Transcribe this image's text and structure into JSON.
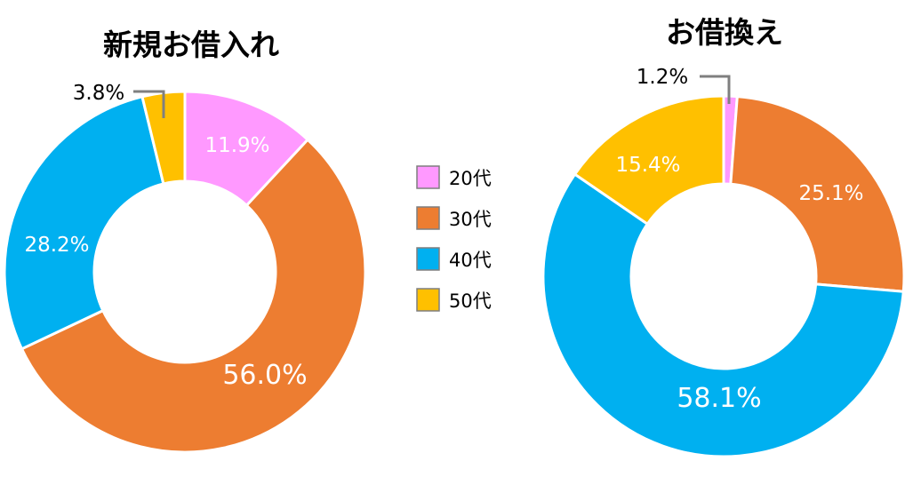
{
  "legend": {
    "placement": "center",
    "items": [
      {
        "label": "20代",
        "color": "#FF99FF"
      },
      {
        "label": "30代",
        "color": "#ED7D31"
      },
      {
        "label": "40代",
        "color": "#00B0F0"
      },
      {
        "label": "50代",
        "color": "#FFC000"
      }
    ]
  },
  "chart_data": [
    {
      "type": "pie",
      "style": "donut",
      "title": "新規お借入れ",
      "categories": [
        "20代",
        "30代",
        "40代",
        "50代"
      ],
      "values": [
        11.9,
        56.0,
        28.2,
        3.8
      ],
      "labels": [
        "11.9%",
        "56.0%",
        "28.2%",
        "3.8%"
      ],
      "colors": [
        "#FF99FF",
        "#ED7D31",
        "#00B0F0",
        "#FFC000"
      ]
    },
    {
      "type": "pie",
      "style": "donut",
      "title": "お借換え",
      "categories": [
        "20代",
        "30代",
        "40代",
        "50代"
      ],
      "values": [
        1.2,
        25.1,
        58.1,
        15.4
      ],
      "labels": [
        "1.2%",
        "25.1%",
        "58.1%",
        "15.4%"
      ],
      "colors": [
        "#FF99FF",
        "#ED7D31",
        "#00B0F0",
        "#FFC000"
      ]
    }
  ]
}
